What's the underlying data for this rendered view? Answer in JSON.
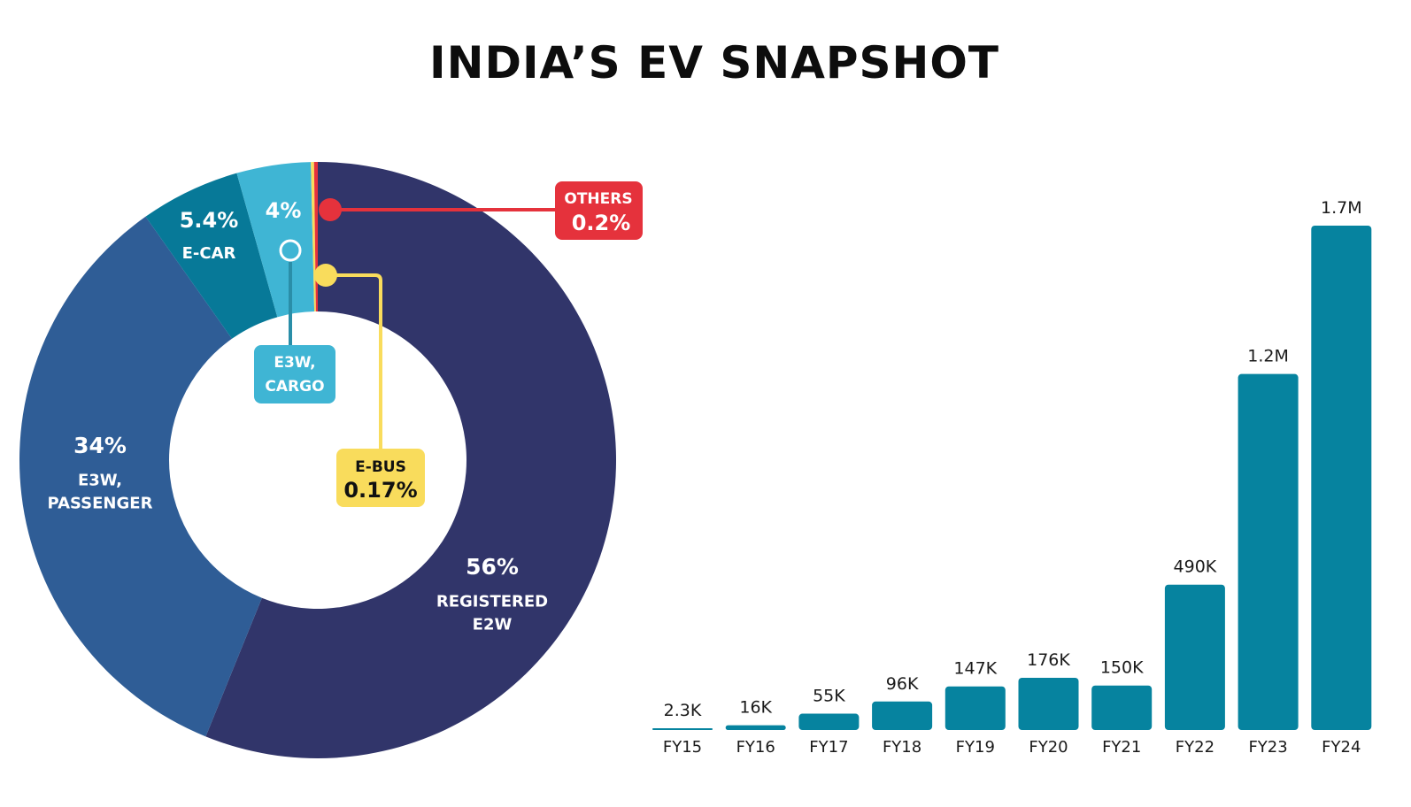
{
  "title": "INDIA’S EV SNAPSHOT",
  "colors": {
    "e2w": "#31356a",
    "e3w_passenger": "#2f5d96",
    "ecar": "#077998",
    "e3w_cargo": "#3fb5d4",
    "ebus": "#f9dc5c",
    "others": "#e5323c",
    "bar": "#06839f"
  },
  "chart_data": [
    {
      "type": "pie",
      "title": "",
      "slices": [
        {
          "id": "e2w",
          "name": "REGISTERED E2W",
          "value": 56,
          "label": "56%",
          "name_lines": [
            "REGISTERED",
            "E2W"
          ]
        },
        {
          "id": "e3w_passenger",
          "name": "E3W, PASSENGER",
          "value": 34,
          "label": "34%",
          "name_lines": [
            "E3W,",
            "PASSENGER"
          ]
        },
        {
          "id": "ecar",
          "name": "E-CAR",
          "value": 5.4,
          "label": "5.4%",
          "name_lines": [
            "E-CAR"
          ]
        },
        {
          "id": "e3w_cargo",
          "name": "E3W, CARGO",
          "value": 4,
          "label": "4%",
          "name_lines": [
            "E3W,",
            "CARGO"
          ]
        },
        {
          "id": "ebus",
          "name": "E-BUS",
          "value": 0.17,
          "label": "0.17%",
          "name_lines": [
            "E-BUS"
          ]
        },
        {
          "id": "others",
          "name": "OTHERS",
          "value": 0.2,
          "label": "0.2%",
          "name_lines": [
            "OTHERS"
          ]
        }
      ]
    },
    {
      "type": "bar",
      "title": "",
      "xlabel": "",
      "ylabel": "",
      "categories": [
        "FY15",
        "FY16",
        "FY17",
        "FY18",
        "FY19",
        "FY20",
        "FY21",
        "FY22",
        "FY23",
        "FY24"
      ],
      "values": [
        2300,
        16000,
        55000,
        96000,
        147000,
        176000,
        150000,
        490000,
        1200000,
        1700000
      ],
      "value_labels": [
        "2.3K",
        "16K",
        "55K",
        "96K",
        "147K",
        "176K",
        "150K",
        "490K",
        "1.2M",
        "1.7M"
      ],
      "ylim": [
        0,
        1700000
      ],
      "grid": false
    }
  ]
}
